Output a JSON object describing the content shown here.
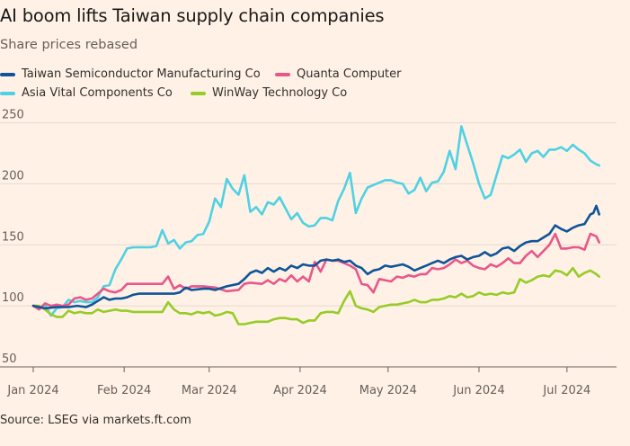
{
  "chart_data": {
    "type": "line",
    "title": "AI boom lifts Taiwan supply chain companies",
    "subtitle": "Share prices rebased",
    "source": "Source: LSEG via markets.ft.com",
    "ylim": [
      50,
      260
    ],
    "yticks": [
      50,
      100,
      150,
      200,
      250
    ],
    "xlim": [
      0,
      194
    ],
    "xticks": [
      {
        "label": "Jan 2024",
        "day": 0
      },
      {
        "label": "Feb 2024",
        "day": 31
      },
      {
        "label": "Mar 2024",
        "day": 60
      },
      {
        "label": "Apr 2024",
        "day": 91
      },
      {
        "label": "May 2024",
        "day": 121
      },
      {
        "label": "Jun 2024",
        "day": 152
      },
      {
        "label": "Jul 2024",
        "day": 182
      }
    ],
    "grid": true,
    "legend_position": "top-left",
    "series": [
      {
        "name": "Taiwan Semiconductor Manufacturing Co",
        "color": "#0f5499",
        "x": [
          0,
          2,
          4,
          8,
          12,
          15,
          18,
          20,
          22,
          24,
          26,
          28,
          30,
          32,
          34,
          36,
          40,
          44,
          48,
          50,
          52,
          54,
          58,
          60,
          62,
          66,
          70,
          72,
          74,
          76,
          78,
          80,
          82,
          84,
          86,
          88,
          90,
          92,
          94,
          96,
          98,
          100,
          102,
          104,
          106,
          108,
          110,
          112,
          114,
          116,
          118,
          120,
          122,
          124,
          126,
          128,
          130,
          132,
          134,
          136,
          138,
          140,
          142,
          144,
          146,
          148,
          150,
          152,
          154,
          156,
          158,
          160,
          162,
          164,
          166,
          168,
          170,
          172,
          174,
          176,
          178,
          180,
          182,
          184,
          186,
          188,
          190,
          191,
          192,
          193
        ],
        "values": [
          100,
          99,
          98,
          99,
          99,
          100,
          99,
          101,
          104,
          107,
          105,
          106,
          106,
          107,
          109,
          110,
          110,
          110,
          110,
          111,
          115,
          113,
          114,
          114,
          113,
          116,
          118,
          122,
          127,
          129,
          127,
          131,
          128,
          131,
          129,
          133,
          131,
          134,
          133,
          133,
          137,
          138,
          137,
          138,
          136,
          137,
          133,
          131,
          126,
          129,
          130,
          133,
          132,
          133,
          134,
          132,
          129,
          131,
          133,
          135,
          137,
          135,
          138,
          140,
          141,
          138,
          140,
          141,
          144,
          141,
          143,
          147,
          148,
          145,
          149,
          152,
          153,
          153,
          156,
          159,
          166,
          163,
          161,
          164,
          166,
          167,
          175,
          176,
          182,
          175
        ]
      },
      {
        "name": "Quanta Computer",
        "color": "#e8578a",
        "x": [
          0,
          2,
          4,
          6,
          8,
          10,
          12,
          14,
          16,
          18,
          20,
          22,
          24,
          26,
          28,
          30,
          32,
          34,
          36,
          40,
          44,
          46,
          48,
          50,
          52,
          54,
          58,
          62,
          66,
          70,
          72,
          74,
          78,
          80,
          82,
          84,
          86,
          88,
          90,
          92,
          94,
          96,
          98,
          100,
          102,
          104,
          106,
          108,
          110,
          112,
          114,
          116,
          118,
          120,
          122,
          124,
          126,
          128,
          130,
          132,
          134,
          136,
          138,
          140,
          142,
          144,
          146,
          148,
          150,
          152,
          154,
          156,
          158,
          160,
          162,
          164,
          166,
          168,
          170,
          172,
          174,
          176,
          178,
          180,
          182,
          184,
          186,
          188,
          190,
          192,
          193
        ],
        "values": [
          100,
          97,
          102,
          100,
          101,
          100,
          101,
          106,
          107,
          105,
          106,
          110,
          114,
          112,
          111,
          113,
          118,
          118,
          118,
          118,
          118,
          124,
          114,
          117,
          114,
          116,
          116,
          115,
          112,
          113,
          118,
          119,
          118,
          121,
          118,
          122,
          120,
          125,
          120,
          124,
          120,
          136,
          128,
          138,
          137,
          137,
          135,
          133,
          130,
          118,
          117,
          111,
          122,
          121,
          120,
          124,
          123,
          125,
          124,
          126,
          126,
          131,
          130,
          131,
          134,
          138,
          135,
          137,
          133,
          131,
          130,
          134,
          132,
          135,
          139,
          135,
          135,
          141,
          145,
          140,
          145,
          150,
          159,
          147,
          147,
          148,
          148,
          146,
          159,
          157,
          152
        ]
      },
      {
        "name": "Asia Vital Components Co",
        "color": "#4fd1e4",
        "x": [
          0,
          2,
          4,
          6,
          8,
          10,
          12,
          14,
          16,
          18,
          20,
          22,
          24,
          26,
          28,
          30,
          32,
          34,
          36,
          38,
          40,
          42,
          44,
          46,
          48,
          50,
          52,
          54,
          56,
          58,
          60,
          62,
          64,
          66,
          68,
          70,
          72,
          74,
          76,
          78,
          80,
          82,
          84,
          86,
          88,
          90,
          92,
          94,
          96,
          98,
          100,
          102,
          104,
          106,
          108,
          110,
          112,
          114,
          116,
          118,
          120,
          122,
          124,
          126,
          128,
          130,
          132,
          134,
          136,
          138,
          140,
          142,
          144,
          146,
          148,
          150,
          152,
          154,
          156,
          158,
          160,
          162,
          164,
          166,
          168,
          170,
          172,
          174,
          176,
          178,
          180,
          182,
          184,
          186,
          188,
          190,
          192,
          193
        ],
        "values": [
          100,
          98,
          101,
          92,
          98,
          99,
          105,
          103,
          104,
          103,
          103,
          107,
          116,
          117,
          130,
          138,
          147,
          148,
          148,
          148,
          148,
          149,
          162,
          151,
          154,
          147,
          152,
          153,
          158,
          159,
          169,
          188,
          181,
          204,
          196,
          191,
          207,
          177,
          181,
          175,
          185,
          183,
          189,
          180,
          171,
          176,
          168,
          165,
          166,
          172,
          172,
          170,
          186,
          196,
          209,
          176,
          188,
          197,
          199,
          201,
          203,
          203,
          201,
          200,
          192,
          195,
          205,
          194,
          201,
          202,
          210,
          227,
          212,
          247,
          232,
          217,
          200,
          188,
          191,
          207,
          223,
          221,
          224,
          228,
          218,
          225,
          227,
          222,
          228,
          228,
          230,
          227,
          232,
          228,
          225,
          219,
          216,
          215
        ]
      },
      {
        "name": "WinWay Technology Co",
        "color": "#96cc28",
        "x": [
          0,
          2,
          4,
          6,
          8,
          10,
          12,
          14,
          16,
          18,
          20,
          22,
          24,
          26,
          28,
          30,
          32,
          34,
          36,
          40,
          44,
          46,
          48,
          50,
          52,
          54,
          56,
          58,
          60,
          62,
          64,
          66,
          68,
          70,
          72,
          74,
          76,
          78,
          80,
          82,
          84,
          86,
          88,
          90,
          92,
          94,
          96,
          98,
          100,
          102,
          104,
          106,
          108,
          110,
          112,
          114,
          116,
          118,
          120,
          122,
          124,
          126,
          128,
          130,
          132,
          134,
          136,
          138,
          140,
          142,
          144,
          146,
          148,
          150,
          152,
          154,
          156,
          158,
          160,
          162,
          164,
          166,
          168,
          170,
          172,
          174,
          176,
          178,
          180,
          182,
          184,
          186,
          188,
          190,
          192,
          193
        ],
        "values": [
          100,
          100,
          97,
          93,
          91,
          91,
          96,
          94,
          95,
          94,
          94,
          97,
          95,
          96,
          97,
          96,
          96,
          95,
          95,
          95,
          95,
          103,
          97,
          94,
          94,
          93,
          95,
          94,
          95,
          92,
          93,
          95,
          94,
          85,
          85,
          86,
          87,
          87,
          87,
          89,
          90,
          90,
          89,
          89,
          86,
          88,
          88,
          94,
          95,
          95,
          94,
          104,
          112,
          100,
          98,
          97,
          95,
          99,
          100,
          101,
          101,
          102,
          103,
          105,
          103,
          103,
          105,
          105,
          106,
          108,
          107,
          110,
          107,
          108,
          111,
          109,
          110,
          109,
          111,
          110,
          111,
          122,
          119,
          121,
          124,
          125,
          124,
          129,
          128,
          125,
          131,
          124,
          127,
          129,
          126,
          124
        ]
      }
    ]
  }
}
